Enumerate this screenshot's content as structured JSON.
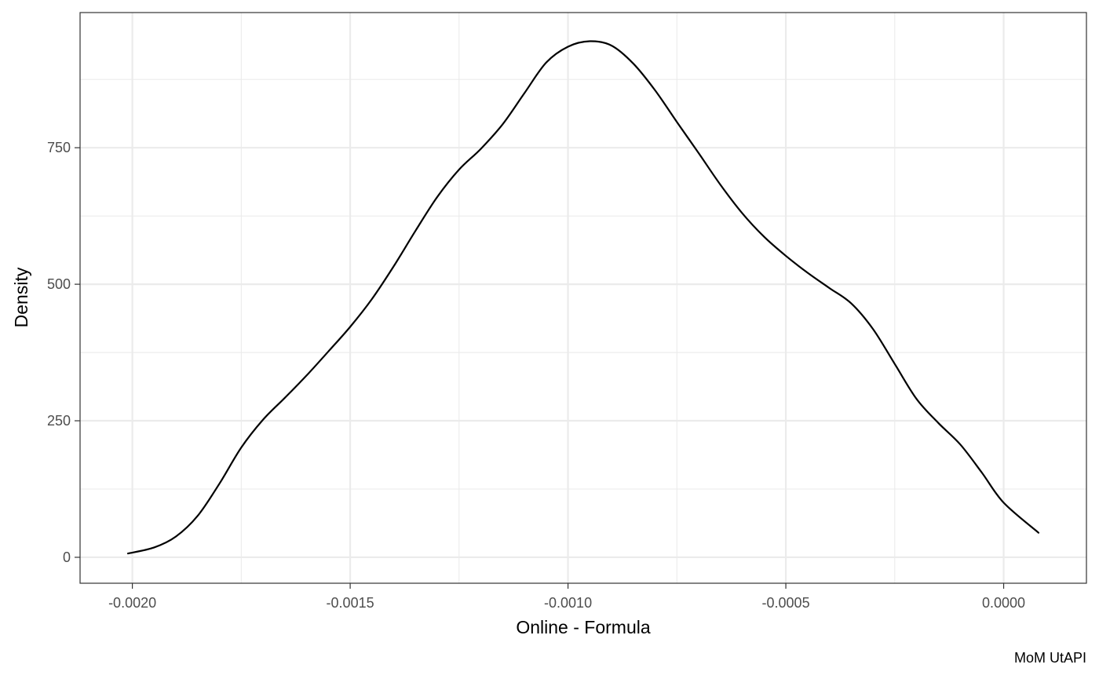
{
  "chart_data": {
    "type": "line",
    "title": "",
    "xlabel": "Online - Formula",
    "ylabel": "Density",
    "caption": "MoM UtAPI",
    "xlim": [
      -0.00212,
      0.00019
    ],
    "ylim": [
      -47.5,
      997.5
    ],
    "grid": true,
    "x_ticks": [
      {
        "value": -0.002,
        "label": "-0.0020"
      },
      {
        "value": -0.0015,
        "label": "-0.0015"
      },
      {
        "value": -0.001,
        "label": "-0.0010"
      },
      {
        "value": -0.0005,
        "label": "-0.0005"
      },
      {
        "value": 0.0,
        "label": "0.0000"
      }
    ],
    "x_minor_ticks": [
      -0.00175,
      -0.00125,
      -0.00075,
      -0.00025
    ],
    "y_ticks": [
      {
        "value": 0,
        "label": "0"
      },
      {
        "value": 250,
        "label": "250"
      },
      {
        "value": 500,
        "label": "500"
      },
      {
        "value": 750,
        "label": "750"
      }
    ],
    "y_minor_ticks": [
      125,
      375,
      625,
      875
    ],
    "series": [
      {
        "line_color": "#000000",
        "x": [
          -0.00201,
          -0.00195,
          -0.0019,
          -0.00185,
          -0.0018,
          -0.00175,
          -0.0017,
          -0.00165,
          -0.0016,
          -0.00155,
          -0.0015,
          -0.00145,
          -0.0014,
          -0.00135,
          -0.0013,
          -0.00125,
          -0.0012,
          -0.00115,
          -0.0011,
          -0.00105,
          -0.001,
          -0.00095,
          -0.0009,
          -0.00085,
          -0.0008,
          -0.00075,
          -0.0007,
          -0.00065,
          -0.0006,
          -0.00055,
          -0.0005,
          -0.00045,
          -0.0004,
          -0.00035,
          -0.0003,
          -0.00025,
          -0.0002,
          -0.00015,
          -0.0001,
          -5e-05,
          0.0,
          8e-05
        ],
        "y": [
          7,
          18,
          38,
          76,
          135,
          201,
          252,
          292,
          333,
          377,
          422,
          473,
          533,
          598,
          660,
          710,
          748,
          793,
          850,
          906,
          935,
          945,
          937,
          904,
          855,
          797,
          740,
          682,
          630,
          587,
          552,
          521,
          493,
          465,
          418,
          354,
          290,
          246,
          207,
          155,
          100,
          45
        ]
      }
    ]
  }
}
